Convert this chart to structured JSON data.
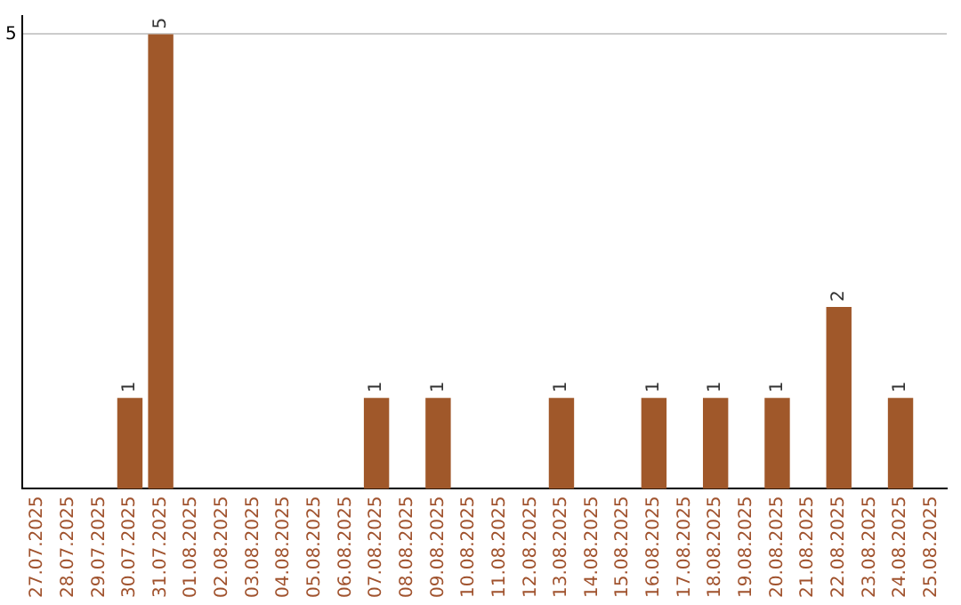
{
  "chart_data": {
    "type": "bar",
    "categories": [
      "27.07.2025",
      "28.07.2025",
      "29.07.2025",
      "30.07.2025",
      "31.07.2025",
      "01.08.2025",
      "02.08.2025",
      "03.08.2025",
      "04.08.2025",
      "05.08.2025",
      "06.08.2025",
      "07.08.2025",
      "08.08.2025",
      "09.08.2025",
      "10.08.2025",
      "11.08.2025",
      "12.08.2025",
      "13.08.2025",
      "14.08.2025",
      "15.08.2025",
      "16.08.2025",
      "17.08.2025",
      "18.08.2025",
      "19.08.2025",
      "20.08.2025",
      "21.08.2025",
      "22.08.2025",
      "23.08.2025",
      "24.08.2025",
      "25.08.2025"
    ],
    "values": [
      null,
      null,
      null,
      1,
      5,
      null,
      null,
      null,
      null,
      null,
      null,
      1,
      null,
      1,
      null,
      null,
      null,
      1,
      null,
      null,
      1,
      null,
      1,
      null,
      1,
      null,
      2,
      null,
      1,
      null
    ],
    "color": "#a0582a",
    "ylim": [
      0,
      5.2
    ],
    "yticks": [
      5
    ],
    "grid": "y",
    "data_labels": true
  }
}
